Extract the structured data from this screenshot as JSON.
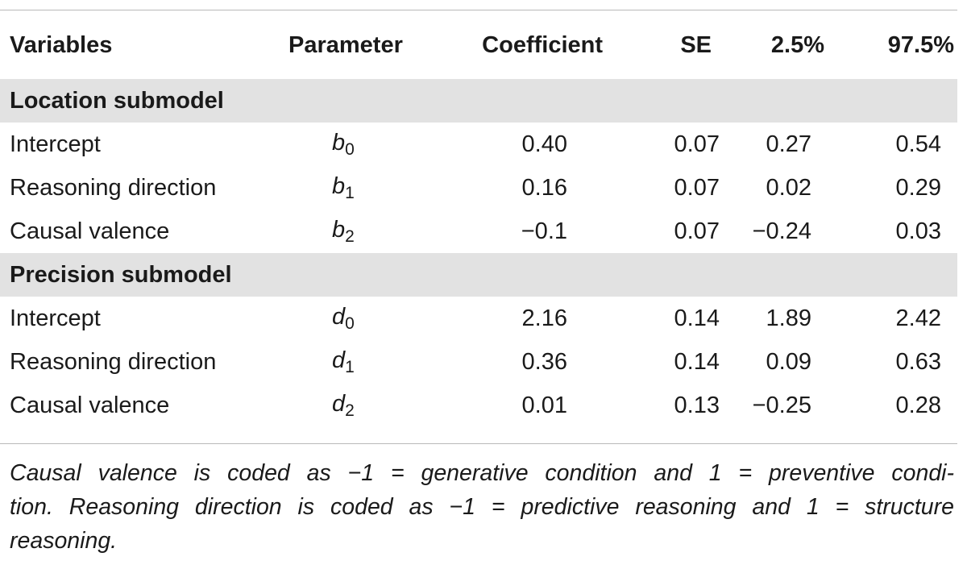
{
  "table": {
    "headers": [
      "Variables",
      "Parameter",
      "Coefficient",
      "SE",
      "2.5%",
      "97.5%"
    ],
    "sections": [
      {
        "title": "Location submodel",
        "rows": [
          {
            "variable": "Intercept",
            "param_symbol": "b",
            "param_sub": "0",
            "coefficient": "0.40",
            "se": "0.07",
            "ci_low": "0.27",
            "ci_high": "0.54"
          },
          {
            "variable": "Reasoning direction",
            "param_symbol": "b",
            "param_sub": "1",
            "coefficient": "0.16",
            "se": "0.07",
            "ci_low": "0.02",
            "ci_high": "0.29"
          },
          {
            "variable": "Causal valence",
            "param_symbol": "b",
            "param_sub": "2",
            "coefficient": "−0.1",
            "se": "0.07",
            "ci_low": "−0.24",
            "ci_high": "0.03"
          }
        ]
      },
      {
        "title": "Precision submodel",
        "rows": [
          {
            "variable": "Intercept",
            "param_symbol": "d",
            "param_sub": "0",
            "coefficient": "2.16",
            "se": "0.14",
            "ci_low": "1.89",
            "ci_high": "2.42"
          },
          {
            "variable": "Reasoning direction",
            "param_symbol": "d",
            "param_sub": "1",
            "coefficient": "0.36",
            "se": "0.14",
            "ci_low": "0.09",
            "ci_high": "0.63"
          },
          {
            "variable": "Causal valence",
            "param_symbol": "d",
            "param_sub": "2",
            "coefficient": "0.01",
            "se": "0.13",
            "ci_low": "−0.25",
            "ci_high": "0.28"
          }
        ]
      }
    ]
  },
  "footnote": {
    "lines": [
      "Causal valence is coded as −1 = generative condition and 1 = preventive condi-",
      "tion. Reasoning direction is coded as −1 = predictive reasoning and 1 = structure",
      "reasoning."
    ]
  }
}
